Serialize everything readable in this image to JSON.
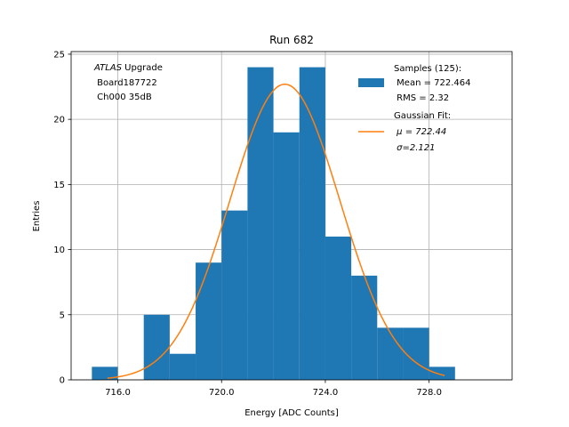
{
  "chart_data": {
    "type": "bar",
    "title": "Run 682",
    "xlabel": "Energy [ADC Counts]",
    "ylabel": "Entries",
    "xlim": [
      714.2,
      731.2
    ],
    "ylim": [
      0,
      25.2
    ],
    "x_ticks": [
      {
        "value": 716,
        "label": "716.0"
      },
      {
        "value": 720,
        "label": "720.0"
      },
      {
        "value": 724,
        "label": "724.0"
      },
      {
        "value": 728,
        "label": "728.0"
      }
    ],
    "y_ticks": [
      {
        "value": 0,
        "label": "0"
      },
      {
        "value": 5,
        "label": "5"
      },
      {
        "value": 10,
        "label": "10"
      },
      {
        "value": 15,
        "label": "15"
      },
      {
        "value": 20,
        "label": "20"
      },
      {
        "value": 25,
        "label": "25"
      }
    ],
    "grid": true,
    "bin_edges": [
      715,
      716,
      717,
      718,
      719,
      720,
      721,
      722,
      723,
      724,
      725,
      726,
      727,
      728,
      729
    ],
    "counts": [
      1,
      0,
      5,
      2,
      9,
      13,
      24,
      19,
      24,
      11,
      8,
      4,
      4,
      1
    ],
    "fit": {
      "mu": 722.44,
      "sigma": 2.121,
      "amplitude": 22.7,
      "x_range": [
        715.6,
        728.6
      ]
    },
    "series": [
      {
        "name": "Samples (125):",
        "color": "#1f77b4",
        "detail": [
          " Mean = 722.464",
          " RMS = 2.32"
        ]
      },
      {
        "name": "Gaussian Fit:",
        "color": "#ff7f0e",
        "detail": [
          " μ = 722.44",
          " σ=2.121"
        ]
      }
    ],
    "annotation": {
      "italic_part": "ATLAS",
      "rest": " Upgrade",
      "lines": [
        " Board187722",
        " Ch000 35dB"
      ]
    },
    "legend_position": "top-right"
  }
}
